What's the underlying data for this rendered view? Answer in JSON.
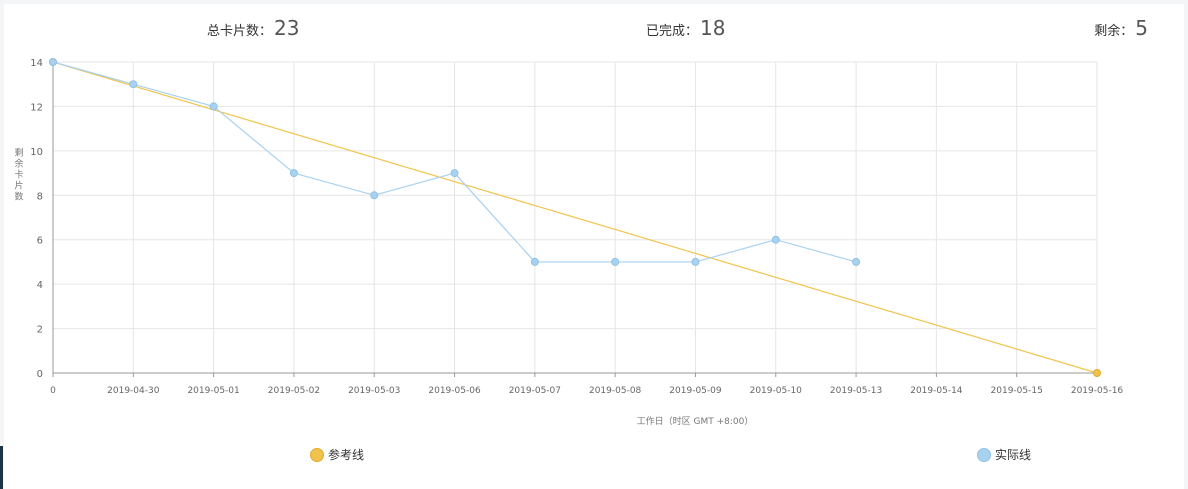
{
  "stats": {
    "total_label": "总卡片数：",
    "total_value": "23",
    "done_label": "已完成：",
    "done_value": "18",
    "remaining_label": "剩余：",
    "remaining_value": "5"
  },
  "chart_data": {
    "type": "line",
    "categories": [
      "0",
      "2019-04-30",
      "2019-05-01",
      "2019-05-02",
      "2019-05-03",
      "2019-05-06",
      "2019-05-07",
      "2019-05-08",
      "2019-05-09",
      "2019-05-10",
      "2019-05-13",
      "2019-05-14",
      "2019-05-15",
      "2019-05-16"
    ],
    "series": [
      {
        "name": "参考线",
        "color": "#f0c44c",
        "values": [
          14,
          null,
          null,
          null,
          null,
          null,
          null,
          null,
          null,
          null,
          null,
          null,
          null,
          0
        ]
      },
      {
        "name": "实际线",
        "color": "#a9d2f0",
        "values": [
          14,
          13,
          12,
          9,
          8,
          9,
          5,
          5,
          5,
          6,
          5,
          null,
          null,
          null
        ]
      }
    ],
    "xlabel": "工作日（时区 GMT +8:00）",
    "ylabel": "剩余卡片数",
    "ylim": [
      0,
      14
    ],
    "yticks": [
      0,
      2,
      4,
      6,
      8,
      10,
      12,
      14
    ],
    "grid": true,
    "legend_position": "bottom"
  }
}
